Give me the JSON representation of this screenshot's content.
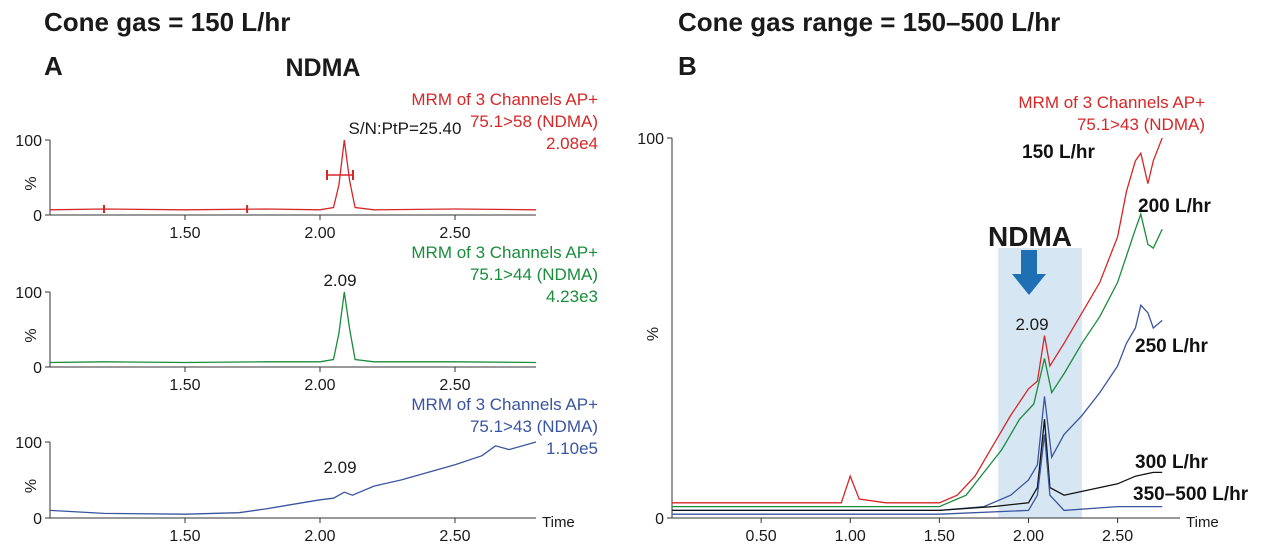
{
  "headings": {
    "left_title": "Cone gas = 150 L/hr",
    "right_title": "Cone gas range = 150–500 L/hr",
    "panel_a": "A",
    "panel_b": "B"
  },
  "colors": {
    "red": "#d62728",
    "green": "#1a8c3c",
    "blue": "#3a559f",
    "black": "#111111",
    "arrow": "#1f6fb5",
    "highlight": "#cfe3f1"
  },
  "chart_data": [
    {
      "type": "line",
      "title": "NDMA",
      "header": [
        "MRM of 3 Channels AP+",
        "75.1>58 (NDMA)",
        "2.08e4"
      ],
      "annotation": "S/N:PtP=25.40",
      "color": "red",
      "ylabel": "%",
      "xlabel": "",
      "ylim": [
        0,
        100
      ],
      "xlim": [
        1.0,
        2.8
      ],
      "yticks": [
        "0",
        "100"
      ],
      "xticks": [
        "1.50",
        "2.00",
        "2.50"
      ],
      "series": [
        {
          "x": [
            1.0,
            1.2,
            1.5,
            1.8,
            2.0,
            2.05,
            2.07,
            2.09,
            2.11,
            2.13,
            2.2,
            2.5,
            2.8
          ],
          "y": [
            7,
            8,
            7,
            8,
            7,
            10,
            40,
            100,
            45,
            10,
            7,
            8,
            7
          ]
        }
      ]
    },
    {
      "type": "line",
      "header": [
        "MRM of 3 Channels AP+",
        "75.1>44 (NDMA)",
        "4.23e3"
      ],
      "annotation": "2.09",
      "color": "green",
      "ylabel": "%",
      "xlabel": "",
      "ylim": [
        0,
        100
      ],
      "xlim": [
        1.0,
        2.8
      ],
      "yticks": [
        "0",
        "100"
      ],
      "xticks": [
        "1.50",
        "2.00",
        "2.50"
      ],
      "series": [
        {
          "x": [
            1.0,
            1.2,
            1.5,
            1.8,
            2.0,
            2.05,
            2.07,
            2.09,
            2.11,
            2.13,
            2.2,
            2.5,
            2.8
          ],
          "y": [
            6,
            7,
            6,
            7,
            7,
            10,
            45,
            100,
            50,
            10,
            7,
            7,
            6
          ]
        }
      ]
    },
    {
      "type": "line",
      "header": [
        "MRM of 3 Channels AP+",
        "75.1>43 (NDMA)",
        "1.10e5"
      ],
      "annotation": "2.09",
      "color": "blue",
      "ylabel": "%",
      "xlabel": "Time",
      "ylim": [
        0,
        100
      ],
      "xlim": [
        1.0,
        2.8
      ],
      "yticks": [
        "0",
        "100"
      ],
      "xticks": [
        "1.50",
        "2.00",
        "2.50"
      ],
      "series": [
        {
          "x": [
            1.0,
            1.2,
            1.5,
            1.7,
            1.8,
            1.9,
            2.0,
            2.05,
            2.09,
            2.12,
            2.2,
            2.3,
            2.4,
            2.5,
            2.6,
            2.65,
            2.7,
            2.8
          ],
          "y": [
            10,
            6,
            5,
            7,
            12,
            18,
            24,
            26,
            34,
            30,
            42,
            50,
            60,
            70,
            82,
            95,
            90,
            100
          ]
        }
      ]
    },
    {
      "type": "line",
      "title": "NDMA",
      "header": [
        "MRM of 3 Channels AP+",
        "75.1>43 (NDMA)"
      ],
      "annotation": "2.09",
      "ylabel": "%",
      "xlabel": "Time",
      "ylim": [
        0,
        100
      ],
      "xlim": [
        0.0,
        2.85
      ],
      "yticks": [
        "0",
        "100"
      ],
      "xticks": [
        "0.50",
        "1.00",
        "1.50",
        "2.00",
        "2.50"
      ],
      "highlight_x": [
        1.83,
        2.3
      ],
      "series": [
        {
          "name": "150 L/hr",
          "color": "red",
          "x": [
            0.0,
            0.5,
            0.95,
            1.0,
            1.05,
            1.2,
            1.5,
            1.6,
            1.7,
            1.8,
            1.9,
            2.0,
            2.05,
            2.09,
            2.12,
            2.2,
            2.3,
            2.4,
            2.5,
            2.55,
            2.6,
            2.63,
            2.67,
            2.7,
            2.75
          ],
          "y": [
            4,
            4,
            4,
            11,
            5,
            4,
            4,
            6,
            11,
            19,
            27,
            34,
            36,
            48,
            40,
            46,
            54,
            62,
            74,
            86,
            94,
            96,
            88,
            94,
            100
          ]
        },
        {
          "name": "200 L/hr",
          "color": "green",
          "x": [
            0.0,
            0.5,
            1.0,
            1.5,
            1.65,
            1.75,
            1.85,
            1.95,
            2.03,
            2.09,
            2.13,
            2.2,
            2.3,
            2.4,
            2.5,
            2.6,
            2.63,
            2.67,
            2.7,
            2.75
          ],
          "y": [
            3,
            3,
            3,
            3,
            6,
            12,
            18,
            26,
            30,
            42,
            33,
            38,
            46,
            53,
            62,
            76,
            80,
            72,
            71,
            76
          ]
        },
        {
          "name": "250  L/hr",
          "color": "blue",
          "x": [
            0.0,
            0.5,
            1.0,
            1.5,
            1.75,
            1.9,
            2.0,
            2.05,
            2.09,
            2.13,
            2.2,
            2.3,
            2.4,
            2.5,
            2.55,
            2.6,
            2.63,
            2.67,
            2.7,
            2.75
          ],
          "y": [
            2,
            2,
            2,
            2,
            3,
            6,
            10,
            14,
            32,
            16,
            22,
            27,
            33,
            40,
            46,
            50,
            56,
            54,
            50,
            52
          ]
        },
        {
          "name": "300 L/hr",
          "color": "black",
          "x": [
            0.0,
            0.5,
            1.0,
            1.5,
            1.8,
            2.0,
            2.05,
            2.09,
            2.12,
            2.2,
            2.3,
            2.5,
            2.6,
            2.7,
            2.75
          ],
          "y": [
            2,
            2,
            2,
            2,
            3,
            4,
            8,
            26,
            8,
            6,
            7,
            9,
            11,
            12,
            12
          ]
        },
        {
          "name": "350–500 L/hr",
          "color": "blue",
          "x": [
            0.0,
            0.5,
            1.0,
            1.5,
            2.0,
            2.05,
            2.09,
            2.12,
            2.2,
            2.5,
            2.75
          ],
          "y": [
            1,
            1,
            1,
            1,
            2,
            6,
            22,
            6,
            2,
            3,
            3
          ]
        }
      ]
    }
  ]
}
